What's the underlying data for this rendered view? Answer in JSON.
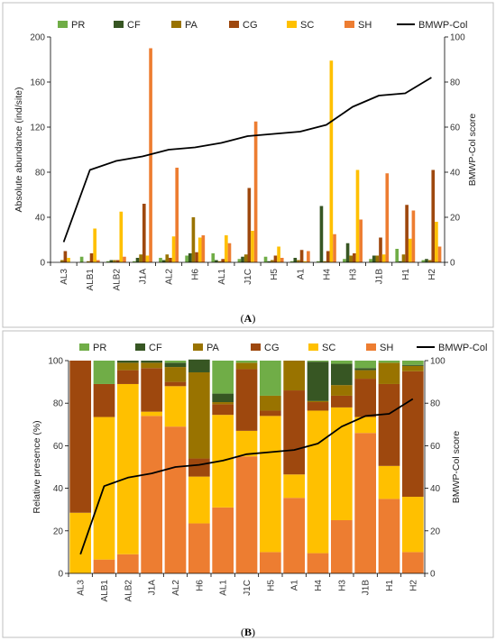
{
  "colors": {
    "PR": "#70ad47",
    "CF": "#375623",
    "PA": "#997300",
    "CG": "#9e480e",
    "SC": "#ffc000",
    "SH": "#ed7d31",
    "BMWP-Col": "#000000"
  },
  "chart_data": [
    {
      "type": "bar",
      "panel": "(A)",
      "panel_letter": "A",
      "ylabel": "Absolute abundance (ind/site)",
      "y2label": "BMWP-Col score",
      "ylim": [
        0,
        200
      ],
      "y2lim": [
        0,
        100
      ],
      "yticks": [
        "0",
        "40",
        "80",
        "120",
        "160",
        "200"
      ],
      "y2ticks": [
        "0",
        "20",
        "40",
        "60",
        "80",
        "100"
      ],
      "legend_position": "top",
      "grid": false,
      "categories": [
        "AL3",
        "ALB1",
        "ALB2",
        "J1A",
        "AL2",
        "H6",
        "AL1",
        "J1C",
        "H5",
        "A1",
        "H4",
        "H3",
        "J1B",
        "H1",
        "H2"
      ],
      "series": [
        {
          "name": "PR",
          "values": [
            0,
            5,
            1,
            1,
            4,
            6,
            8,
            3,
            5,
            1,
            1,
            3,
            3,
            12,
            2
          ]
        },
        {
          "name": "CF",
          "values": [
            0,
            0,
            2,
            4,
            2,
            8,
            2,
            5,
            1,
            4,
            50,
            17,
            6,
            1,
            3
          ]
        },
        {
          "name": "PA",
          "values": [
            2,
            1,
            2,
            7,
            7,
            40,
            1,
            7,
            2,
            2,
            1,
            6,
            6,
            7,
            2
          ]
        },
        {
          "name": "CG",
          "values": [
            10,
            8,
            2,
            52,
            4,
            9,
            3,
            66,
            6,
            11,
            10,
            8,
            22,
            51,
            82
          ]
        },
        {
          "name": "SC",
          "values": [
            4,
            30,
            45,
            6,
            23,
            22,
            24,
            28,
            14,
            1,
            179,
            82,
            7,
            21,
            36
          ]
        },
        {
          "name": "SH",
          "values": [
            0,
            2,
            5,
            190,
            84,
            24,
            17,
            125,
            4,
            10,
            25,
            38,
            79,
            46,
            14
          ]
        }
      ],
      "line": {
        "name": "BMWP-Col",
        "values": [
          9,
          41,
          45,
          47,
          50,
          51,
          53,
          56,
          57,
          58,
          61,
          69,
          74,
          75,
          82
        ]
      }
    },
    {
      "type": "bar",
      "stacked": true,
      "panel": "(B)",
      "panel_letter": "B",
      "ylabel": "Relative presence (%)",
      "y2label": "BMWP-Col score",
      "ylim": [
        0,
        100
      ],
      "y2lim": [
        0,
        100
      ],
      "yticks": [
        "0",
        "20",
        "40",
        "60",
        "80",
        "100"
      ],
      "y2ticks": [
        "0",
        "20",
        "40",
        "60",
        "80",
        "100"
      ],
      "legend_position": "top",
      "grid": false,
      "categories": [
        "AL3",
        "ALB1",
        "ALB2",
        "J1A",
        "AL2",
        "H6",
        "AL1",
        "J1C",
        "H5",
        "A1",
        "H4",
        "H3",
        "J1B",
        "H1",
        "H2"
      ],
      "series": [
        {
          "name": "SH",
          "values": [
            0,
            6.5,
            9,
            74,
            69,
            23.5,
            31,
            55,
            10,
            35.5,
            9.5,
            25,
            66,
            35,
            10
          ]
        },
        {
          "name": "SC",
          "values": [
            28.5,
            67,
            80,
            2,
            19,
            22,
            43.5,
            12,
            64,
            11,
            67,
            53,
            7.5,
            15.5,
            26
          ]
        },
        {
          "name": "CG",
          "values": [
            71.5,
            15.5,
            6.5,
            20.5,
            2,
            8.5,
            5,
            29,
            2.5,
            39.5,
            4,
            5.5,
            18,
            38.5,
            59
          ]
        },
        {
          "name": "PA",
          "values": [
            0,
            0,
            3.5,
            2.5,
            7,
            40.5,
            1,
            3,
            7,
            14,
            0.5,
            5,
            4,
            10,
            2.5
          ]
        },
        {
          "name": "CF",
          "values": [
            0,
            0,
            1,
            1,
            2,
            6,
            4,
            0,
            0,
            0,
            18.5,
            10,
            1,
            0,
            0.5
          ]
        },
        {
          "name": "PR",
          "values": [
            0,
            11,
            0,
            0,
            1,
            0,
            15.5,
            1,
            16.5,
            0,
            0.5,
            1.5,
            3.5,
            1,
            2
          ]
        }
      ],
      "line": {
        "name": "BMWP-Col",
        "values": [
          9,
          41,
          45,
          47,
          50,
          51,
          53,
          56,
          57,
          58,
          61,
          69,
          74,
          75,
          82
        ]
      }
    }
  ]
}
